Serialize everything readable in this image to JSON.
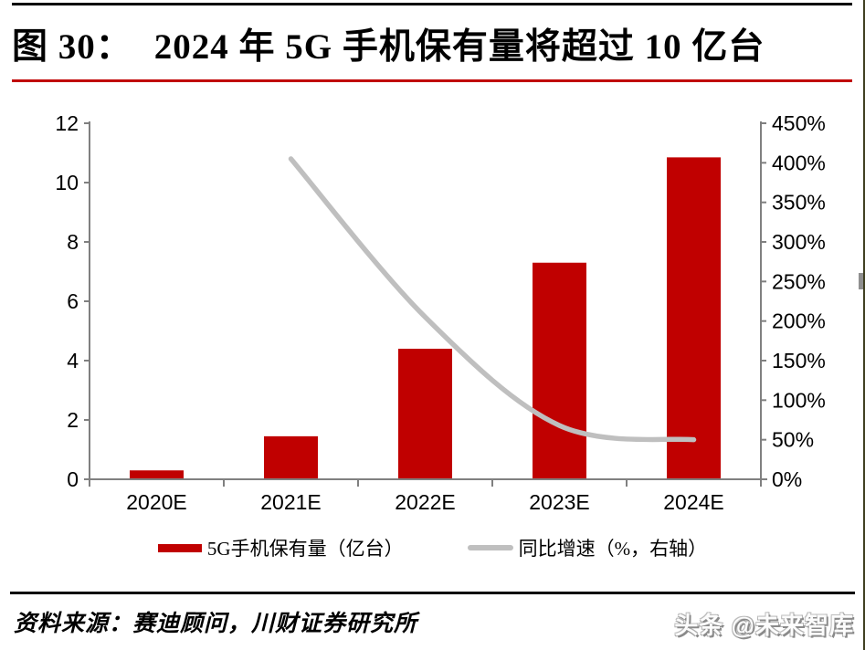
{
  "page": {
    "background": "#ffffff",
    "accent_red": "#c00000",
    "line_gray": "#bfbfbf",
    "axis_gray": "#808080"
  },
  "header": {
    "figure_label": "图 30：",
    "title": "2024 年 5G 手机保有量将超过 10 亿台"
  },
  "legend": {
    "items": [
      {
        "label": "5G手机保有量（亿台）",
        "swatch": "bar",
        "color": "#c00000"
      },
      {
        "label": "同比增速（%，右轴）",
        "swatch": "line",
        "color": "#bfbfbf"
      }
    ]
  },
  "footer": {
    "source": "资料来源：赛迪顾问，川财证券研究所",
    "watermark": "头条 @未来智库"
  },
  "chart_data": {
    "type": "combo",
    "title": "2024 年 5G 手机保有量将超过 10 亿台",
    "categories": [
      "2020E",
      "2021E",
      "2022E",
      "2023E",
      "2024E"
    ],
    "series": [
      {
        "name": "5G手机保有量（亿台）",
        "type": "bar",
        "axis": "left",
        "color": "#c00000",
        "values": [
          0.3,
          1.45,
          4.4,
          7.3,
          10.85
        ]
      },
      {
        "name": "同比增速（%，右轴）",
        "type": "line",
        "axis": "right",
        "color": "#bfbfbf",
        "values": [
          null,
          405,
          205,
          68,
          50
        ]
      }
    ],
    "left_axis": {
      "min": 0,
      "max": 12,
      "step": 2,
      "tick_labels": [
        "0",
        "2",
        "4",
        "6",
        "8",
        "10",
        "12"
      ]
    },
    "right_axis": {
      "min": 0,
      "max": 450,
      "step": 50,
      "unit": "%",
      "tick_labels": [
        "0%",
        "50%",
        "100%",
        "150%",
        "200%",
        "250%",
        "300%",
        "350%",
        "400%",
        "450%"
      ]
    },
    "grid": false,
    "legend_position": "bottom"
  }
}
